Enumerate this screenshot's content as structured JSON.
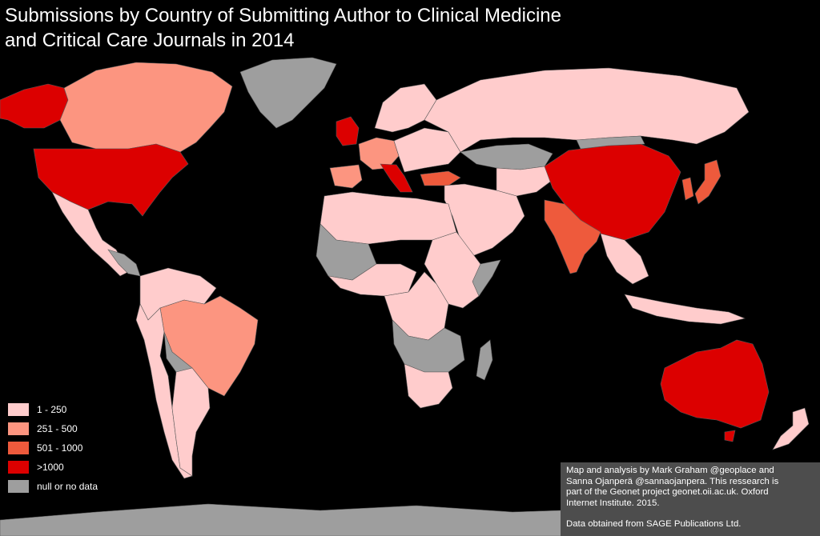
{
  "title": {
    "line1": "Submissions by Country of Submitting Author to Clinical Medicine",
    "line2": "and Critical Care Journals in 2014"
  },
  "legend": [
    {
      "label": "1 - 250",
      "color": "#ffcccc"
    },
    {
      "label": "251 - 500",
      "color": "#fc9580"
    },
    {
      "label": "501 - 1000",
      "color": "#ee5a3c"
    },
    {
      "label": ">1000",
      "color": "#dc0000"
    },
    {
      "label": "null or no data",
      "color": "#9e9e9e"
    }
  ],
  "credits": {
    "line1": "Map and analysis by Mark Graham @geoplace and",
    "line2": "Sanna Ojanperä @sannaojanpera. This ressearch is",
    "line3": "part of the Geonet project geonet.oii.ac.uk. Oxford",
    "line4": "Internet Institute. 2015.",
    "line5": "Data obtained from SAGE Publications Ltd."
  },
  "colors": {
    "background": "#000000",
    "border": "#5a5a5a"
  }
}
